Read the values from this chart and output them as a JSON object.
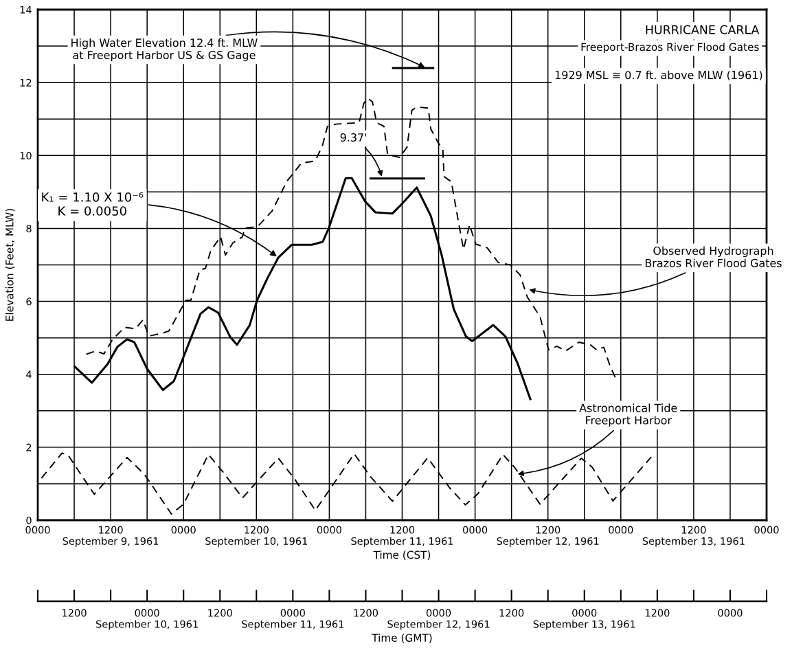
{
  "chart_data": {
    "type": "line",
    "title": "HURRICANE CARLA",
    "subtitle": "Freeport-Brazos River Flood Gates",
    "xlabel": "Time (CST)",
    "ylabel": "Elevation (Feet, MLW)",
    "x2label": "Time (GMT)",
    "xlim": [
      "1961-09-09T00:00",
      "1961-09-14T00:00"
    ],
    "xticks": [
      {
        "value": "1961-09-09T00:00",
        "label": "0000"
      },
      {
        "value": "1961-09-09T06:00",
        "label": null
      },
      {
        "value": "1961-09-09T12:00",
        "label": "1200\nSeptember 9, 1961"
      },
      {
        "value": "1961-09-09T18:00",
        "label": null
      },
      {
        "value": "1961-09-10T00:00",
        "label": "0000"
      },
      {
        "value": "1961-09-10T06:00",
        "label": null
      },
      {
        "value": "1961-09-10T12:00",
        "label": "1200\nSeptember 10, 1961"
      },
      {
        "value": "1961-09-10T18:00",
        "label": null
      },
      {
        "value": "1961-09-11T00:00",
        "label": "0000"
      },
      {
        "value": "1961-09-11T06:00",
        "label": null
      },
      {
        "value": "1961-09-11T12:00",
        "label": "1200\nSeptember 11, 1961"
      },
      {
        "value": "1961-09-11T18:00",
        "label": null
      },
      {
        "value": "1961-09-12T00:00",
        "label": "0000"
      },
      {
        "value": "1961-09-12T06:00",
        "label": null
      },
      {
        "value": "1961-09-12T12:00",
        "label": "1200\nSeptember 12, 1961"
      },
      {
        "value": "1961-09-12T18:00",
        "label": null
      },
      {
        "value": "1961-09-13T00:00",
        "label": "0000"
      },
      {
        "value": "1961-09-13T06:00",
        "label": null
      },
      {
        "value": "1961-09-13T12:00",
        "label": "1200\nSeptember 13, 1961"
      },
      {
        "value": "1961-09-13T18:00",
        "label": null
      },
      {
        "value": "1961-09-14T00:00",
        "label": "0000"
      }
    ],
    "x2lim": [
      "1961-09-09T06:00",
      "1961-09-14T06:00"
    ],
    "x2ticks": [
      {
        "value": "1961-09-09T06:00",
        "label": null
      },
      {
        "value": "1961-09-09T12:00",
        "label": "1200"
      },
      {
        "value": "1961-09-09T18:00",
        "label": null
      },
      {
        "value": "1961-09-10T00:00",
        "label": "0000\nSeptember 10, 1961"
      },
      {
        "value": "1961-09-10T06:00",
        "label": null
      },
      {
        "value": "1961-09-10T12:00",
        "label": "1200"
      },
      {
        "value": "1961-09-10T18:00",
        "label": null
      },
      {
        "value": "1961-09-11T00:00",
        "label": "0000\nSeptember 11, 1961"
      },
      {
        "value": "1961-09-11T06:00",
        "label": null
      },
      {
        "value": "1961-09-11T12:00",
        "label": "1200"
      },
      {
        "value": "1961-09-11T18:00",
        "label": null
      },
      {
        "value": "1961-09-12T00:00",
        "label": "0000\nSeptember 12, 1961"
      },
      {
        "value": "1961-09-12T06:00",
        "label": null
      },
      {
        "value": "1961-09-12T12:00",
        "label": "1200"
      },
      {
        "value": "1961-09-12T18:00",
        "label": null
      },
      {
        "value": "1961-09-13T00:00",
        "label": "0000\nSeptember 13, 1961"
      },
      {
        "value": "1961-09-13T06:00",
        "label": null
      },
      {
        "value": "1961-09-13T12:00",
        "label": "1200"
      },
      {
        "value": "1961-09-13T18:00",
        "label": null
      },
      {
        "value": "1961-09-14T00:00",
        "label": "0000"
      },
      {
        "value": "1961-09-14T06:00",
        "label": null
      }
    ],
    "ylim": [
      0,
      14
    ],
    "yticks": [
      0,
      {
        "value": 1,
        "label": null
      },
      2,
      {
        "value": 3,
        "label": null
      },
      4,
      {
        "value": 5,
        "label": null
      },
      6,
      {
        "value": 7,
        "label": null
      },
      8,
      {
        "value": 9,
        "label": null
      },
      10,
      {
        "value": 11,
        "label": null
      },
      12,
      {
        "value": 13,
        "label": null
      },
      14
    ],
    "grid": true,
    "series": [
      {
        "color": "#000000",
        "line_style": "dashed",
        "x": [
          "1961-09-09T08:00",
          "1961-09-09T09:30",
          "1961-09-09T10:54",
          "1961-09-09T12:18",
          "1961-09-09T14:18",
          "1961-09-09T16:06",
          "1961-09-09T17:18",
          "1961-09-09T18:18",
          "1961-09-09T20:24",
          "1961-09-09T21:36",
          "1961-09-10T00:24",
          "1961-09-10T01:12",
          "1961-09-10T02:42",
          "1961-09-10T03:36",
          "1961-09-10T04:30",
          "1961-09-10T06:06",
          "1961-09-10T06:54",
          "1961-09-10T08:06",
          "1961-09-10T09:42",
          "1961-09-10T10:06",
          "1961-09-10T12:12",
          "1961-09-10T14:36",
          "1961-09-10T17:00",
          "1961-09-10T19:24",
          "1961-09-10T21:42",
          "1961-09-10T22:54",
          "1961-09-10T23:42",
          "1961-09-11T01:06",
          "1961-09-11T04:54",
          "1961-09-11T05:42",
          "1961-09-11T06:24",
          "1961-09-11T07:06",
          "1961-09-11T07:48",
          "1961-09-11T09:00",
          "1961-09-11T09:36",
          "1961-09-11T11:36",
          "1961-09-11T12:48",
          "1961-09-11T13:36",
          "1961-09-11T14:24",
          "1961-09-11T16:18",
          "1961-09-11T16:42",
          "1961-09-11T17:54",
          "1961-09-11T18:42",
          "1961-09-11T18:54",
          "1961-09-11T20:06",
          "1961-09-11T21:18",
          "1961-09-11T22:06",
          "1961-09-11T23:06",
          "1961-09-12T00:06",
          "1961-09-12T02:00",
          "1961-09-12T03:48",
          "1961-09-12T05:48",
          "1961-09-12T07:24",
          "1961-09-12T08:36",
          "1961-09-12T10:42",
          "1961-09-12T12:06",
          "1961-09-12T13:30",
          "1961-09-12T14:54",
          "1961-09-12T17:06",
          "1961-09-12T19:00",
          "1961-09-12T20:00",
          "1961-09-12T21:12",
          "1961-09-12T22:12",
          "1961-09-12T23:12"
        ],
        "values": [
          4.55,
          4.64,
          4.56,
          4.95,
          5.29,
          5.25,
          5.49,
          5.05,
          5.12,
          5.19,
          6.03,
          6.03,
          6.87,
          6.9,
          7.4,
          7.77,
          7.27,
          7.6,
          7.77,
          8.01,
          8.05,
          8.48,
          9.29,
          9.79,
          9.85,
          10.29,
          10.8,
          10.86,
          10.9,
          11.44,
          11.57,
          11.47,
          10.9,
          10.8,
          10.02,
          9.95,
          10.23,
          11.24,
          11.33,
          11.3,
          10.73,
          10.36,
          10.16,
          9.42,
          9.28,
          8.14,
          7.43,
          8.1,
          7.57,
          7.47,
          7.07,
          7.0,
          6.73,
          6.12,
          5.58,
          4.67,
          4.77,
          4.64,
          4.88,
          4.81,
          4.67,
          4.74,
          4.24,
          3.87
        ]
      },
      {
        "color": "#000000",
        "line_style": "solid",
        "x": [
          "1961-09-09T06:06",
          "1961-09-09T08:54",
          "1961-09-09T11:30",
          "1961-09-09T13:06",
          "1961-09-09T14:42",
          "1961-09-09T15:54",
          "1961-09-09T18:00",
          "1961-09-09T20:36",
          "1961-09-09T22:24",
          "1961-09-10T00:00",
          "1961-09-10T02:48",
          "1961-09-10T04:06",
          "1961-09-10T05:42",
          "1961-09-10T07:42",
          "1961-09-10T08:48",
          "1961-09-10T10:54",
          "1961-09-10T12:06",
          "1961-09-10T13:48",
          "1961-09-10T15:36",
          "1961-09-10T17:48",
          "1961-09-10T21:06",
          "1961-09-10T22:54",
          "1961-09-10T23:54",
          "1961-09-11T02:42",
          "1961-09-11T03:42",
          "1961-09-11T05:54",
          "1961-09-11T07:36",
          "1961-09-11T10:24",
          "1961-09-11T12:00",
          "1961-09-11T14:24",
          "1961-09-11T16:42",
          "1961-09-11T18:30",
          "1961-09-11T20:30",
          "1961-09-11T22:30",
          "1961-09-11T23:30",
          "1961-09-12T03:00",
          "1961-09-12T05:00",
          "1961-09-12T07:00",
          "1961-09-12T09:06"
        ],
        "values": [
          4.21,
          3.77,
          4.28,
          4.75,
          4.96,
          4.88,
          4.15,
          3.57,
          3.81,
          4.48,
          5.66,
          5.84,
          5.69,
          5.02,
          4.81,
          5.35,
          6.03,
          6.63,
          7.2,
          7.55,
          7.55,
          7.63,
          8.0,
          9.38,
          9.38,
          8.74,
          8.44,
          8.41,
          8.68,
          9.12,
          8.35,
          7.27,
          5.78,
          5.04,
          4.91,
          5.35,
          5.04,
          4.3,
          3.32
        ]
      },
      {
        "color": "#000000",
        "line_style": "dashed",
        "x": [
          "1961-09-09T00:36",
          "1961-09-09T04:00",
          "1961-09-09T05:00",
          "1961-09-09T09:18",
          "1961-09-09T14:42",
          "1961-09-09T17:36",
          "1961-09-09T22:00",
          "1961-09-10T00:00",
          "1961-09-10T04:06",
          "1961-09-10T06:30",
          "1961-09-10T09:42",
          "1961-09-10T15:36",
          "1961-09-10T18:12",
          "1961-09-10T21:42",
          "1961-09-11T04:06",
          "1961-09-11T06:48",
          "1961-09-11T10:24",
          "1961-09-11T16:12",
          "1961-09-11T19:48",
          "1961-09-11T22:24",
          "1961-09-12T00:30",
          "1961-09-12T04:36",
          "1961-09-12T06:30",
          "1961-09-12T10:42",
          "1961-09-12T17:30",
          "1961-09-12T19:18",
          "1961-09-12T22:42",
          "1961-09-13T05:00"
        ],
        "values": [
          1.15,
          1.84,
          1.78,
          0.71,
          1.72,
          1.25,
          0.17,
          0.44,
          1.8,
          1.32,
          0.61,
          1.7,
          1.15,
          0.27,
          1.82,
          1.19,
          0.52,
          1.71,
          0.89,
          0.42,
          0.73,
          1.8,
          1.45,
          0.44,
          1.7,
          1.45,
          0.53,
          1.73
        ]
      },
      {
        "color": "#000000",
        "line_style": "solid",
        "x": [
          "1961-09-11T10:30",
          "1961-09-11T17:06"
        ],
        "values": [
          12.4,
          12.4
        ]
      },
      {
        "color": "#000000",
        "line_style": "solid",
        "x": [
          "1961-09-11T06:48",
          "1961-09-11T15:36"
        ],
        "values": [
          9.37,
          9.37
        ]
      }
    ],
    "annotations": [
      {
        "text": "High Water Elevation 12.4 ft. MLW\nat Freeport Harbor US & GS Gage",
        "x": "1961-09-11T16:00",
        "y": 12.4
      },
      {
        "text": "9.37'",
        "x": "1961-09-11T08:42",
        "y": 9.37
      },
      {
        "text": "K₁ = 1.10 X 10⁻⁶\nK = 0.0050",
        "x": "1961-09-10T15:36",
        "y": 7.2
      },
      {
        "text": "Observed Hydrograph\nBrazos River Flood Gates",
        "x": "1961-09-12T08:36",
        "y": 6.33
      },
      {
        "text": "Astronomical Tide\nFreeport Harbor",
        "x": "1961-09-12T06:42",
        "y": 1.26
      },
      "1929 MSL ≅ 0.7 ft. above MLW (1961)"
    ]
  }
}
